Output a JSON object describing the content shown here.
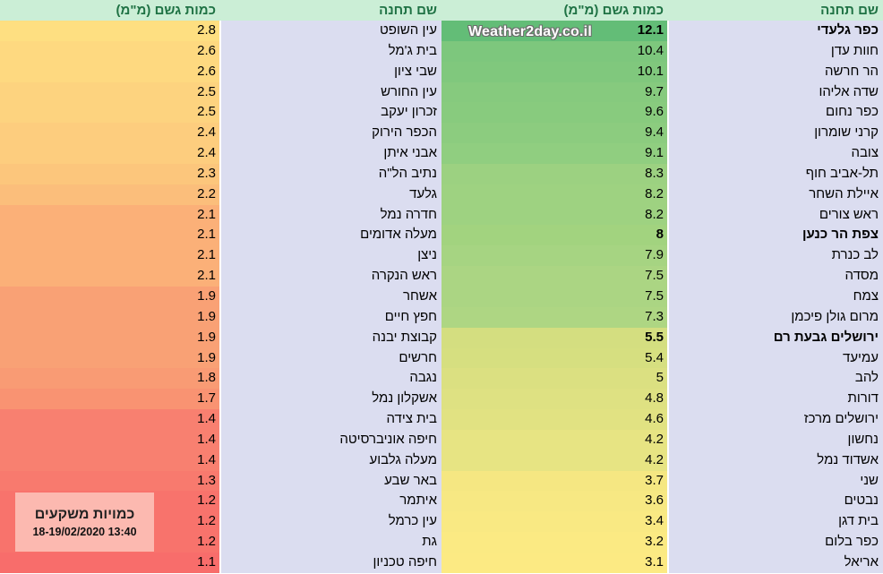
{
  "watermark": {
    "text": "Weather2day.co.il"
  },
  "overlay": {
    "title": "כמויות משקעים",
    "datetime": "18-19/02/2020 13:40",
    "bg": "#fcb9b0"
  },
  "colors": {
    "header_bg": "#cbeed6",
    "header_text": "#1f7244",
    "name_col_bg": "#dbddf0",
    "text": "#000000"
  },
  "chart_data": {
    "type": "table",
    "title": "כמויות משקעים",
    "subtitle": "18-19/02/2020 13:40",
    "columns": {
      "station": "שם תחנה",
      "amount": "כמות גשם (מ\"מ)"
    },
    "color_scale": {
      "description": "conditional-format 3-color scale by rain amount (mm)",
      "low": "#f8696b",
      "mid": "#ffeb84",
      "high": "#63be7b"
    },
    "tables": [
      {
        "position": "right",
        "rows": [
          {
            "name": "כפר גלעדי",
            "value": "12.1",
            "color": "#63bd77",
            "bold": true
          },
          {
            "name": "חוות עדן",
            "value": "10.4",
            "color": "#7dc77d"
          },
          {
            "name": "הר חרשה",
            "value": "10.1",
            "color": "#80c87d"
          },
          {
            "name": "שדה אליהו",
            "value": "9.7",
            "color": "#86ca7e"
          },
          {
            "name": "כפר נחום",
            "value": "9.6",
            "color": "#88cb7e"
          },
          {
            "name": "קרני שומרון",
            "value": "9.4",
            "color": "#8ccc7f"
          },
          {
            "name": "צובה",
            "value": "9.1",
            "color": "#90ce80"
          },
          {
            "name": "תל-אביב חוף",
            "value": "8.3",
            "color": "#9cd181"
          },
          {
            "name": "איילת השחר",
            "value": "8.2",
            "color": "#9ed281"
          },
          {
            "name": "ראש צורים",
            "value": "8.2",
            "color": "#9ed281"
          },
          {
            "name": "צפת הר כנען",
            "value": "8",
            "color": "#a2d37f",
            "bold": true
          },
          {
            "name": "לב כנרת",
            "value": "7.9",
            "color": "#a6d482"
          },
          {
            "name": "מסדה",
            "value": "7.5",
            "color": "#abd583"
          },
          {
            "name": "צמח",
            "value": "7.5",
            "color": "#abd583"
          },
          {
            "name": "מרום גולן פיכמן",
            "value": "7.3",
            "color": "#aed683"
          },
          {
            "name": "ירושלים גבעת רם",
            "value": "5.5",
            "color": "#d4de80",
            "bold": true
          },
          {
            "name": "עמיעד",
            "value": "5.4",
            "color": "#d6df80"
          },
          {
            "name": "להב",
            "value": "5",
            "color": "#dbe081"
          },
          {
            "name": "דורות",
            "value": "4.8",
            "color": "#dee182"
          },
          {
            "name": "ירושלים מרכז",
            "value": "4.6",
            "color": "#e1e282"
          },
          {
            "name": "נחשון",
            "value": "4.2",
            "color": "#e7e483"
          },
          {
            "name": "אשדוד נמל",
            "value": "4.2",
            "color": "#e7e483"
          },
          {
            "name": "שני",
            "value": "3.7",
            "color": "#f5e782"
          },
          {
            "name": "נבטים",
            "value": "3.6",
            "color": "#f7e883"
          },
          {
            "name": "בית דגן",
            "value": "3.4",
            "color": "#f9e983"
          },
          {
            "name": "כפר בלום",
            "value": "3.2",
            "color": "#fbea83"
          },
          {
            "name": "אריאל",
            "value": "3.1",
            "color": "#fcea83"
          }
        ]
      },
      {
        "position": "left",
        "rows": [
          {
            "name": "עין השופט",
            "value": "2.8",
            "color": "#fedf81"
          },
          {
            "name": "בית ג'מל",
            "value": "2.6",
            "color": "#fed980"
          },
          {
            "name": "שבי ציון",
            "value": "2.6",
            "color": "#fed980"
          },
          {
            "name": "עין החורש",
            "value": "2.5",
            "color": "#fdd37f"
          },
          {
            "name": "זכרון יעקב",
            "value": "2.5",
            "color": "#fdd37f"
          },
          {
            "name": "הכפר הירוק",
            "value": "2.4",
            "color": "#fdcd7e"
          },
          {
            "name": "אבני איתן",
            "value": "2.4",
            "color": "#fdcd7e"
          },
          {
            "name": "נתיב הל\"ה",
            "value": "2.3",
            "color": "#fcc67c"
          },
          {
            "name": "גלעד",
            "value": "2.2",
            "color": "#fbbe7b"
          },
          {
            "name": "חדרה נמל",
            "value": "2.1",
            "color": "#fbb078"
          },
          {
            "name": "מעלה אדומים",
            "value": "2.1",
            "color": "#fbb078"
          },
          {
            "name": "ניצן",
            "value": "2.1",
            "color": "#fbb078"
          },
          {
            "name": "ראש הנקרה",
            "value": "2.1",
            "color": "#fbb078"
          },
          {
            "name": "אשחר",
            "value": "1.9",
            "color": "#f9a175"
          },
          {
            "name": "חפץ חיים",
            "value": "1.9",
            "color": "#f9a175"
          },
          {
            "name": "קבוצת יבנה",
            "value": "1.9",
            "color": "#f9a175"
          },
          {
            "name": "חרשים",
            "value": "1.9",
            "color": "#f9a175"
          },
          {
            "name": "נגבה",
            "value": "1.8",
            "color": "#f99b74"
          },
          {
            "name": "אשקלון נמל",
            "value": "1.7",
            "color": "#f99372"
          },
          {
            "name": "בית צידה",
            "value": "1.4",
            "color": "#f88070"
          },
          {
            "name": "חיפה אוניברסיטה",
            "value": "1.4",
            "color": "#f88070"
          },
          {
            "name": "מעלה גלבוע",
            "value": "1.4",
            "color": "#f88070"
          },
          {
            "name": "באר שבע",
            "value": "1.3",
            "color": "#f87a6e"
          },
          {
            "name": "איתמר",
            "value": "1.2",
            "color": "#f8736c"
          },
          {
            "name": "עין כרמל",
            "value": "1.2",
            "color": "#f8736c"
          },
          {
            "name": "גת",
            "value": "1.2",
            "color": "#f8736c"
          },
          {
            "name": "חיפה טכניון",
            "value": "1.1",
            "color": "#f86d6b"
          }
        ]
      }
    ]
  }
}
